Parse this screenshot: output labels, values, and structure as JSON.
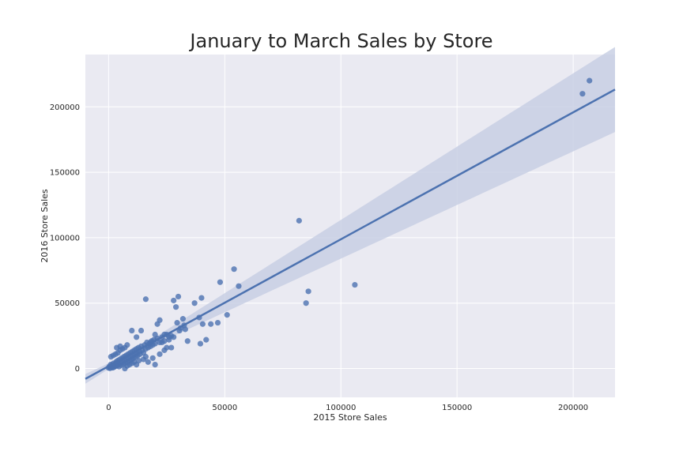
{
  "chart_data": {
    "type": "scatter",
    "title": "January to March Sales by Store",
    "xlabel": "2015 Store Sales",
    "ylabel": "2016 Store Sales",
    "xlim": [
      -10000,
      218000
    ],
    "ylim": [
      -22000,
      240000
    ],
    "x_ticks": [
      0,
      50000,
      100000,
      150000,
      200000
    ],
    "y_ticks": [
      0,
      50000,
      100000,
      150000,
      200000
    ],
    "grid": true,
    "colors": {
      "background": "#eaeaf2",
      "grid": "#ffffff",
      "points": "#4c72b0",
      "line": "#4c72b0",
      "band": "#c5cde2"
    },
    "regression": {
      "slope": 0.97,
      "intercept": 1800
    },
    "series": [
      {
        "points": [
          [
            0,
            500
          ],
          [
            300,
            1500
          ],
          [
            600,
            200
          ],
          [
            900,
            3000
          ],
          [
            1200,
            800
          ],
          [
            1500,
            2500
          ],
          [
            1800,
            600
          ],
          [
            2100,
            4000
          ],
          [
            2400,
            1200
          ],
          [
            2700,
            3200
          ],
          [
            3000,
            1800
          ],
          [
            3300,
            5200
          ],
          [
            3600,
            2200
          ],
          [
            3900,
            6000
          ],
          [
            4200,
            3500
          ],
          [
            4500,
            1500
          ],
          [
            4800,
            7000
          ],
          [
            5100,
            4200
          ],
          [
            5400,
            2600
          ],
          [
            5700,
            8000
          ],
          [
            6000,
            5100
          ],
          [
            6300,
            3400
          ],
          [
            6600,
            9000
          ],
          [
            6900,
            6200
          ],
          [
            7200,
            4200
          ],
          [
            7500,
            10000
          ],
          [
            7800,
            7000
          ],
          [
            8100,
            5000
          ],
          [
            8400,
            11000
          ],
          [
            8700,
            8000
          ],
          [
            9000,
            6000
          ],
          [
            9300,
            12000
          ],
          [
            9600,
            9000
          ],
          [
            9900,
            7000
          ],
          [
            10200,
            13000
          ],
          [
            10500,
            10000
          ],
          [
            10800,
            8000
          ],
          [
            11100,
            14000
          ],
          [
            11400,
            11000
          ],
          [
            11700,
            9000
          ],
          [
            12000,
            15000
          ],
          [
            12300,
            12000
          ],
          [
            12600,
            10000
          ],
          [
            12900,
            16000
          ],
          [
            13200,
            13000
          ],
          [
            13500,
            11000
          ],
          [
            14000,
            17000
          ],
          [
            14500,
            14000
          ],
          [
            15000,
            12000
          ],
          [
            15500,
            18000
          ],
          [
            16000,
            15000
          ],
          [
            16500,
            20000
          ],
          [
            17000,
            16000
          ],
          [
            17500,
            19000
          ],
          [
            18000,
            17000
          ],
          [
            18500,
            21000
          ],
          [
            19000,
            18000
          ],
          [
            19500,
            22000
          ],
          [
            20000,
            19000
          ],
          [
            21000,
            23000
          ],
          [
            22000,
            20000
          ],
          [
            23000,
            24000
          ],
          [
            24000,
            21000
          ],
          [
            25000,
            26000
          ],
          [
            26000,
            22000
          ],
          [
            27000,
            25000
          ],
          [
            28000,
            24000
          ],
          [
            1000,
            9000
          ],
          [
            2000,
            10000
          ],
          [
            3000,
            11000
          ],
          [
            4000,
            12000
          ],
          [
            5000,
            14000
          ],
          [
            6000,
            15000
          ],
          [
            7000,
            16000
          ],
          [
            8000,
            18000
          ],
          [
            3500,
            16000
          ],
          [
            5000,
            17000
          ],
          [
            7000,
            0
          ],
          [
            8000,
            2000
          ],
          [
            9000,
            3000
          ],
          [
            10000,
            4000
          ],
          [
            11000,
            5000
          ],
          [
            12000,
            3000
          ],
          [
            13000,
            6000
          ],
          [
            15000,
            7000
          ],
          [
            16000,
            9000
          ],
          [
            17000,
            5000
          ],
          [
            19000,
            8000
          ],
          [
            20000,
            3000
          ],
          [
            22000,
            11000
          ],
          [
            24000,
            14000
          ],
          [
            10000,
            29000
          ],
          [
            12000,
            24000
          ],
          [
            14000,
            29000
          ],
          [
            16000,
            53000
          ],
          [
            18000,
            20000
          ],
          [
            20000,
            26000
          ],
          [
            21000,
            34000
          ],
          [
            22000,
            37000
          ],
          [
            23000,
            20000
          ],
          [
            24000,
            26000
          ],
          [
            25000,
            16000
          ],
          [
            26000,
            24000
          ],
          [
            27000,
            16000
          ],
          [
            28000,
            52000
          ],
          [
            29000,
            47000
          ],
          [
            29500,
            35000
          ],
          [
            30000,
            55000
          ],
          [
            30500,
            29000
          ],
          [
            31000,
            31000
          ],
          [
            32000,
            38000
          ],
          [
            32500,
            33000
          ],
          [
            33000,
            30000
          ],
          [
            34000,
            21000
          ],
          [
            37000,
            50000
          ],
          [
            39000,
            39000
          ],
          [
            39500,
            19000
          ],
          [
            40000,
            54000
          ],
          [
            40500,
            34000
          ],
          [
            42000,
            22000
          ],
          [
            44000,
            34000
          ],
          [
            47000,
            35000
          ],
          [
            48000,
            66000
          ],
          [
            51000,
            41000
          ],
          [
            54000,
            76000
          ],
          [
            56000,
            63000
          ],
          [
            82000,
            113000
          ],
          [
            85000,
            50000
          ],
          [
            86000,
            59000
          ],
          [
            106000,
            64000
          ],
          [
            204000,
            210000
          ],
          [
            207000,
            220000
          ]
        ]
      }
    ]
  }
}
